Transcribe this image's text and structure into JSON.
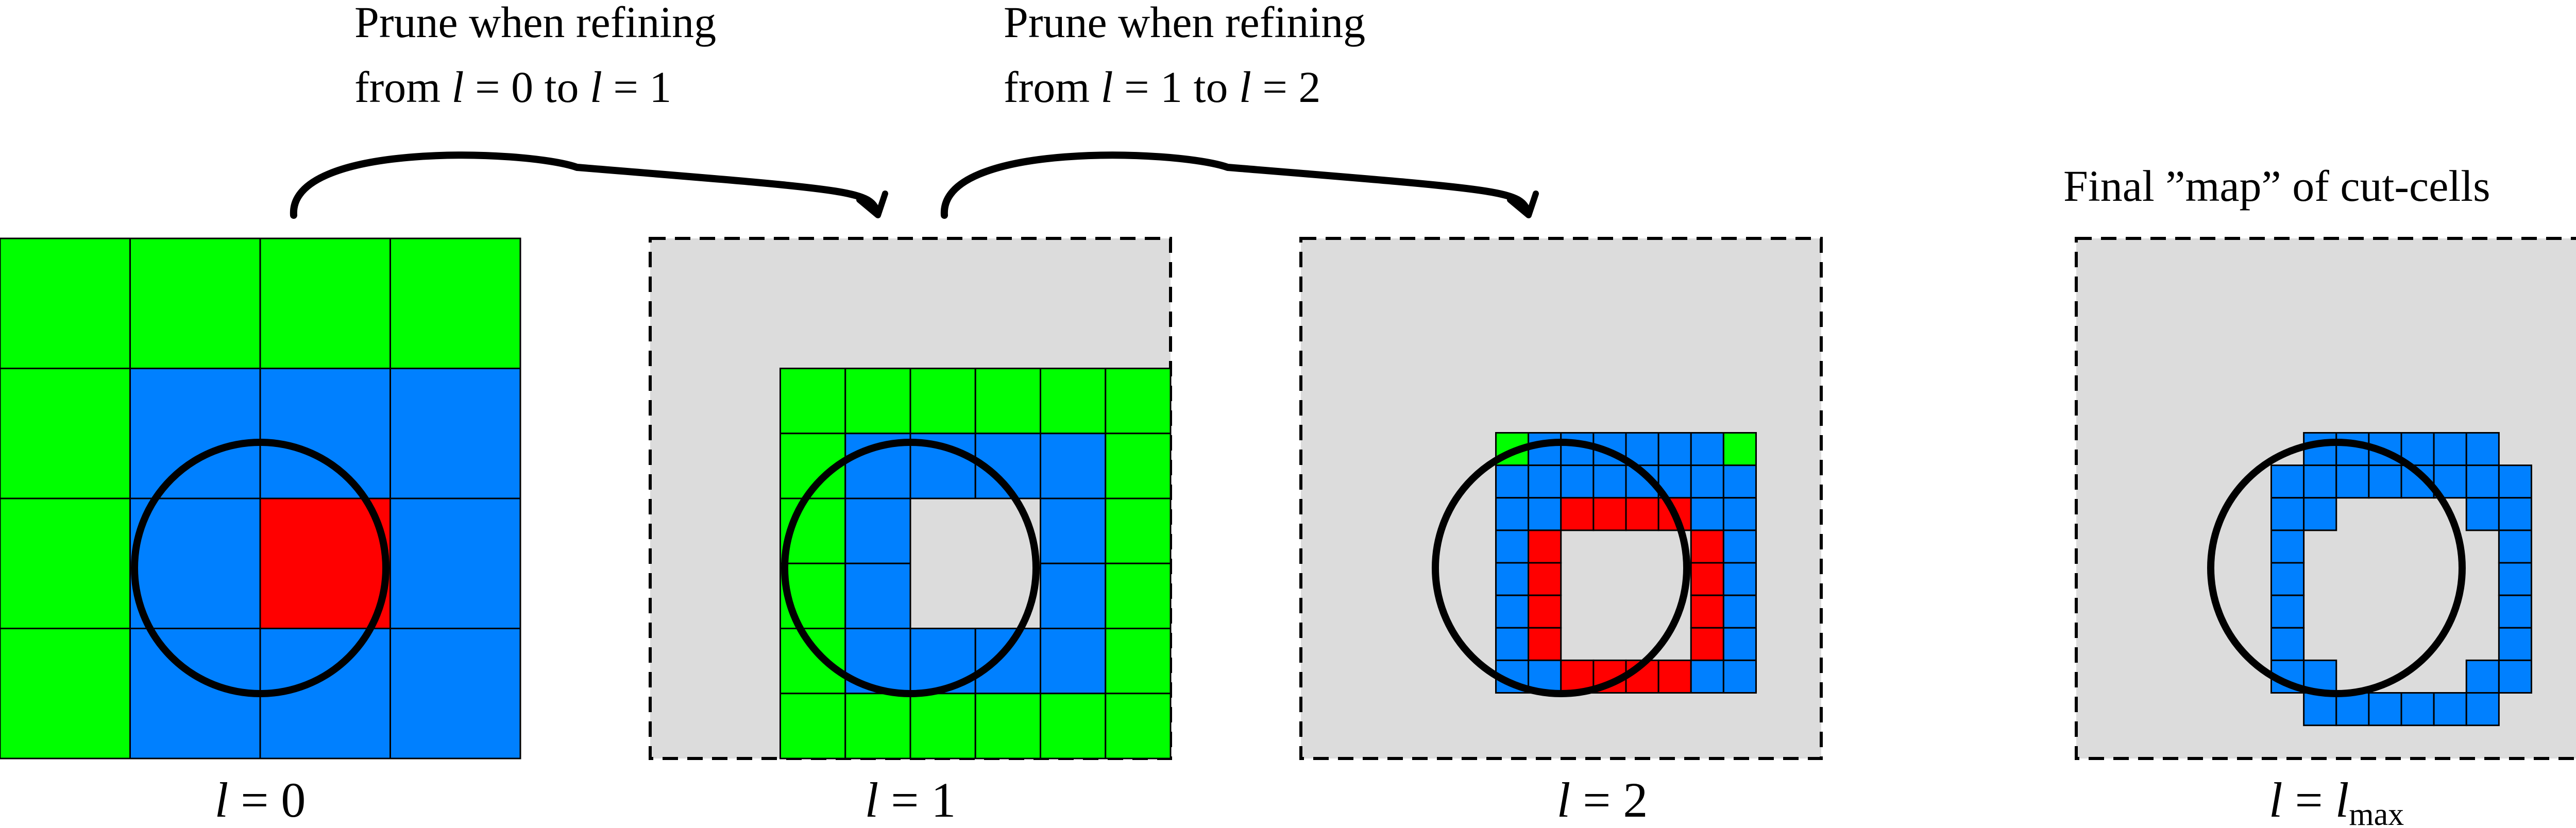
{
  "colors": {
    "green": "#00ff00",
    "blue": "#0080ff",
    "red": "#ff0000",
    "gray": "#dcdcdc",
    "line": "#000000"
  },
  "annotations": {
    "prune_01": {
      "line1": "Prune when refining",
      "line2_pre": "from ",
      "line2_mid": " to "
    },
    "prune_12": {
      "line1": "Prune when refining",
      "line2_pre": "from ",
      "line2_mid": " to "
    },
    "final_map": "Final ”map” of cut-cells"
  },
  "levels": {
    "l0": {
      "var": "l",
      "eq": " = ",
      "val": "0"
    },
    "l1": {
      "var": "l",
      "eq": " = ",
      "val": "1"
    },
    "l2": {
      "var": "l",
      "eq": " = ",
      "val": "2"
    },
    "lmax": {
      "var": "l",
      "eq": " = ",
      "sub_base": "l",
      "sub": "max"
    }
  }
}
